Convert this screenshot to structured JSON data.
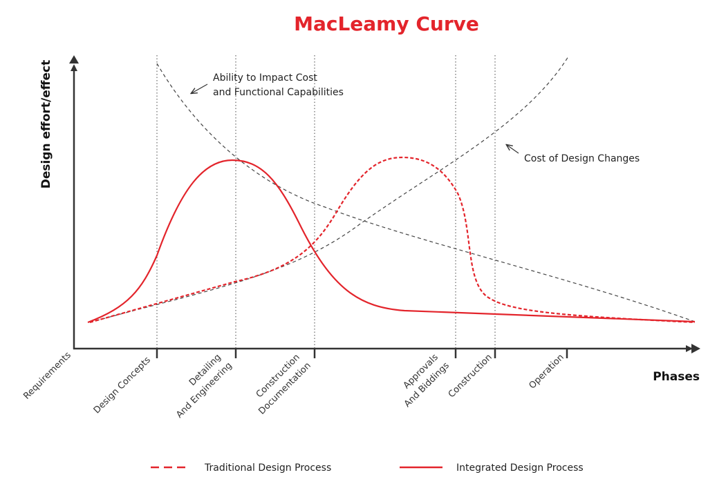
{
  "title": "MacLeamy Curve",
  "y_axis_label": "Design effort/effect",
  "x_axis_label": "Phases",
  "phases": [
    {
      "lines": [
        "Requirements"
      ]
    },
    {
      "lines": [
        "Design Concepts"
      ]
    },
    {
      "lines": [
        "Detailing",
        "And Engineering"
      ]
    },
    {
      "lines": [
        "Construction",
        "Documentation"
      ]
    },
    {
      "lines": [
        "Approvals",
        "And Biddings"
      ]
    },
    {
      "lines": [
        "Construction"
      ]
    },
    {
      "lines": [
        "Operation"
      ]
    }
  ],
  "annotations": [
    {
      "lines": [
        "Ability to Impact Cost",
        "and Functional Capabilities"
      ]
    },
    {
      "lines": [
        "Cost of Design Changes"
      ]
    }
  ],
  "legend": [
    "Traditional Design Process",
    "Integrated Design Process"
  ]
}
